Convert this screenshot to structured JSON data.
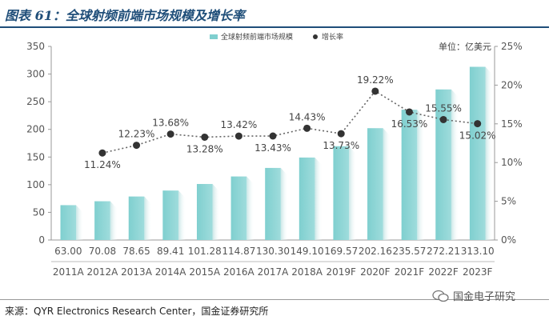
{
  "header": {
    "title": "图表 61：全球射频前端市场规模及增长率"
  },
  "footer": {
    "source": "来源：QYR Electronics Research Center，国金证券研究所",
    "watermark": "国金电子研究"
  },
  "colors": {
    "bar": "#7fcfcf",
    "bar_shade": "#c9e6e6",
    "line": "#333333",
    "title": "#1f4e79"
  },
  "chart_data": {
    "type": "bar",
    "title": "全球射频前端市场规模及增长率",
    "unit_label": "单位：亿美元",
    "categories": [
      "2011A",
      "2012A",
      "2013A",
      "2014A",
      "2015A",
      "2016A",
      "2017A",
      "2018A",
      "2019F",
      "2020F",
      "2021F",
      "2022F",
      "2023F"
    ],
    "series": [
      {
        "name": "全球射频前端市场规模",
        "kind": "bar",
        "axis": "left",
        "values": [
          63.0,
          70.08,
          78.65,
          89.41,
          101.28,
          114.87,
          130.3,
          149.1,
          169.57,
          202.16,
          235.57,
          272.21,
          313.1
        ],
        "labels": [
          "63.00",
          "70.08",
          "78.65",
          "89.41",
          "101.28",
          "114.87",
          "130.30",
          "149.10",
          "169.57",
          "202.16",
          "235.57",
          "272.21",
          "313.10"
        ]
      },
      {
        "name": "增长率",
        "kind": "line",
        "axis": "right",
        "values": [
          null,
          11.24,
          12.23,
          13.68,
          13.28,
          13.42,
          13.43,
          14.43,
          13.73,
          19.22,
          16.53,
          15.55,
          15.02
        ],
        "labels": [
          "",
          "11.24%",
          "12.23%",
          "13.68%",
          "13.28%",
          "13.42%",
          "13.43%",
          "14.43%",
          "13.73%",
          "19.22%",
          "16.53%",
          "15.55%",
          "15.02%"
        ],
        "label_pos": [
          "",
          "below",
          "above",
          "above",
          "below",
          "above",
          "below",
          "above",
          "below",
          "above",
          "below",
          "above",
          "below"
        ]
      }
    ],
    "ylim": [
      0,
      350
    ],
    "yticks": [
      "0",
      "50",
      "100",
      "150",
      "200",
      "250",
      "300",
      "350"
    ],
    "y2lim": [
      0,
      25
    ],
    "y2ticks": [
      "0%",
      "5%",
      "10%",
      "15%",
      "20%",
      "25%"
    ],
    "legend": [
      "全球射频前端市场规模",
      "增长率"
    ],
    "legend_position": "top-center"
  }
}
